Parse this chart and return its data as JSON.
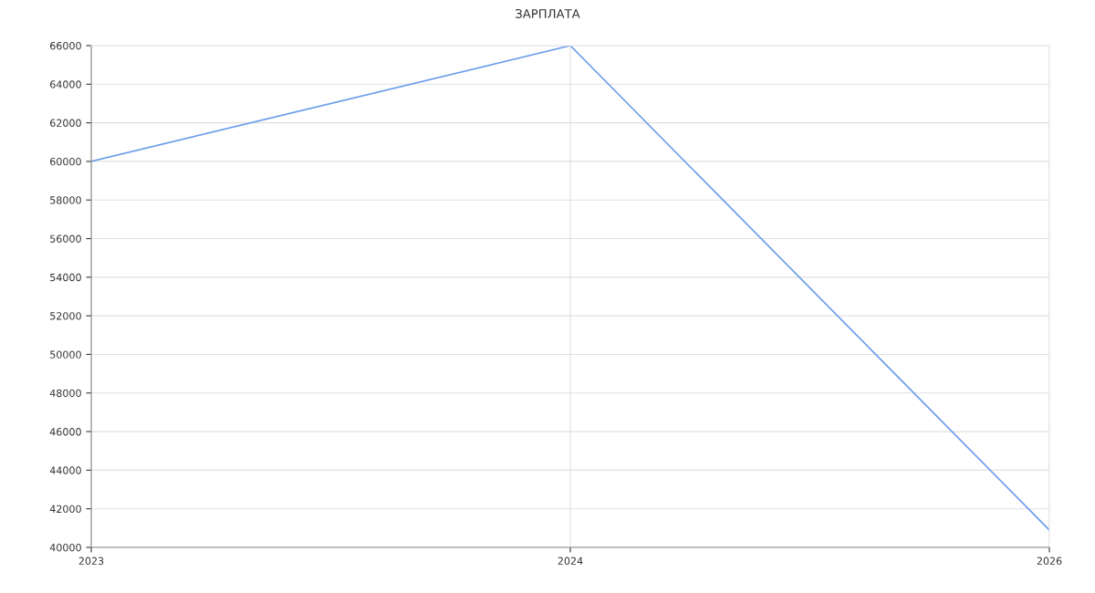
{
  "chart_data": {
    "type": "line",
    "title": "ЗАРПЛАТА",
    "categories": [
      "2023",
      "2024",
      "2026"
    ],
    "series": [
      {
        "color": "#6d9eeb",
        "values": [
          60000,
          66000,
          40900
        ]
      }
    ],
    "ylim": [
      40000,
      66000
    ],
    "yticks": [
      40000,
      42000,
      44000,
      46000,
      48000,
      50000,
      52000,
      54000,
      56000,
      58000,
      60000,
      62000,
      64000,
      66000
    ],
    "grid": true,
    "legend": false,
    "marker": "none",
    "line_style": "solid"
  }
}
